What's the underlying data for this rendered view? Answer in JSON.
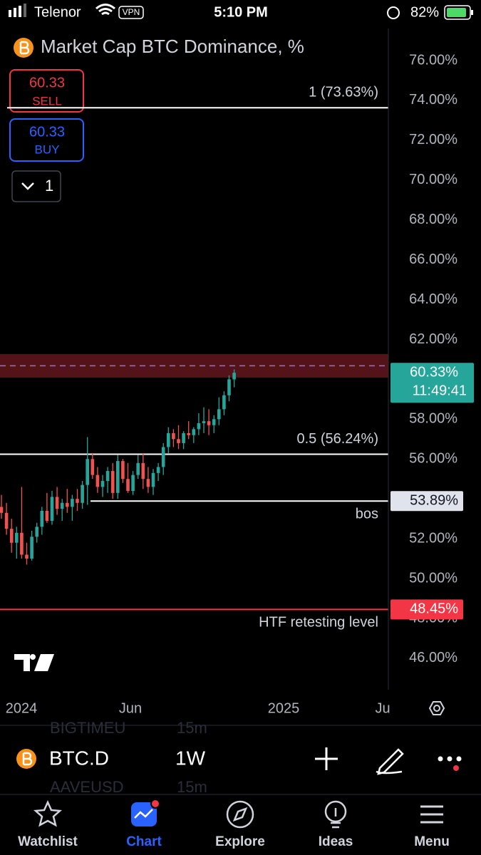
{
  "status_bar": {
    "carrier": "Telenor",
    "vpn": "VPN",
    "time": "5:10 PM",
    "battery": "82%"
  },
  "header": {
    "title": "Market Cap BTC Dominance, %"
  },
  "order_buttons": {
    "sell_price": "60.33",
    "sell_label": "SELL",
    "buy_price": "60.33",
    "buy_label": "BUY",
    "quantity": "1"
  },
  "chart_data": {
    "type": "candlestick",
    "ylim": [
      44.53,
      77.61
    ],
    "yticks": [
      {
        "value": 46,
        "label": "46.00%"
      },
      {
        "value": 48,
        "label": "48.00%"
      },
      {
        "value": 50,
        "label": "50.00%"
      },
      {
        "value": 52,
        "label": "52.00%"
      },
      {
        "value": 54,
        "label": "54.00%"
      },
      {
        "value": 56,
        "label": "56.00%"
      },
      {
        "value": 58,
        "label": "58.00%"
      },
      {
        "value": 60,
        "label": "60.00%"
      },
      {
        "value": 62,
        "label": "62.00%"
      },
      {
        "value": 64,
        "label": "64.00%"
      },
      {
        "value": 66,
        "label": "66.00%"
      },
      {
        "value": 68,
        "label": "68.00%"
      },
      {
        "value": 70,
        "label": "70.00%"
      },
      {
        "value": 72,
        "label": "72.00%"
      },
      {
        "value": 74,
        "label": "74.00%"
      },
      {
        "value": 76,
        "label": "76.00%"
      }
    ],
    "x_labels": [
      "2024",
      "Jun",
      "2025",
      "Ju"
    ],
    "up_color": "#26a69a",
    "down_color": "#ef5350",
    "open": [
      53.6,
      53.3,
      52.5,
      51.8,
      52.3,
      51.2,
      51.0,
      52.1,
      52.6,
      53.4,
      52.9,
      54.1,
      53.5,
      53.8,
      53.6,
      54.0,
      53.8,
      54.7,
      56.0,
      55.2,
      54.6,
      54.9,
      55.4,
      54.3,
      55.9,
      55.0,
      54.4,
      55.2,
      55.8,
      55.0,
      54.6,
      55.3,
      55.6,
      56.6,
      57.3,
      57.0,
      56.8,
      57.3,
      57.2,
      57.5,
      57.8,
      57.9,
      57.7,
      58.0,
      58.5,
      59.2,
      60.0
    ],
    "high": [
      54.2,
      53.8,
      53.0,
      52.6,
      54.6,
      51.8,
      52.4,
      52.8,
      53.6,
      54.3,
      54.4,
      54.6,
      54.0,
      54.5,
      54.2,
      54.5,
      54.9,
      57.1,
      56.3,
      55.6,
      55.2,
      55.6,
      55.8,
      56.2,
      56.0,
      55.8,
      55.4,
      56.2,
      56.3,
      55.6,
      55.5,
      55.8,
      56.8,
      57.6,
      57.5,
      57.7,
      57.4,
      57.9,
      57.6,
      58.3,
      58.6,
      58.5,
      58.2,
      59.1,
      59.4,
      60.2,
      60.5
    ],
    "low": [
      53.0,
      52.2,
      51.3,
      51.0,
      51.0,
      50.7,
      50.9,
      51.8,
      52.2,
      52.8,
      52.7,
      53.2,
      52.9,
      53.3,
      52.9,
      53.4,
      53.5,
      53.7,
      55.0,
      54.3,
      54.1,
      54.3,
      54.0,
      54.0,
      54.8,
      54.3,
      54.2,
      55.0,
      54.5,
      54.3,
      54.2,
      54.9,
      55.2,
      56.3,
      56.6,
      56.5,
      56.5,
      57.0,
      56.8,
      57.2,
      57.3,
      57.2,
      57.3,
      57.7,
      58.2,
      58.9,
      59.6
    ],
    "close": [
      53.3,
      52.5,
      51.8,
      52.3,
      51.2,
      51.0,
      52.1,
      52.6,
      53.4,
      52.9,
      54.1,
      53.5,
      53.8,
      53.6,
      54.0,
      53.8,
      54.7,
      56.0,
      55.2,
      54.6,
      54.9,
      55.4,
      54.3,
      55.9,
      55.0,
      54.4,
      55.2,
      55.8,
      55.0,
      54.6,
      55.3,
      55.6,
      56.6,
      57.3,
      57.0,
      56.8,
      57.3,
      57.2,
      57.5,
      57.8,
      57.9,
      57.7,
      58.0,
      58.5,
      59.2,
      60.0,
      60.33
    ],
    "zone": [
      60.09,
      61.27
    ],
    "zone_line": 60.68,
    "zone_color": "#f23645",
    "levels": [
      {
        "value": 73.63,
        "label": "1 (73.63%)",
        "color": "#ffffff"
      },
      {
        "value": 56.24,
        "label": "0.5 (56.24%)",
        "color": "#ffffff"
      },
      {
        "value": 53.89,
        "label": "bos",
        "price_label": "53.89%",
        "color": "#ffffff"
      },
      {
        "value": 48.45,
        "label": "HTF retesting level",
        "price_label": "48.45%",
        "color": "#f23645"
      }
    ],
    "current_price": {
      "value": 60.33,
      "label": "60.33%",
      "countdown": "11:49:41"
    }
  },
  "toolbar": {
    "symbol": "BTC.D",
    "interval": "1W"
  },
  "behind_rows": [
    [
      "BIGTIMEU",
      "15m"
    ],
    [
      "AAVEUSD",
      "15m"
    ]
  ],
  "tabs": [
    "Watchlist",
    "Chart",
    "Explore",
    "Ideas",
    "Menu"
  ]
}
